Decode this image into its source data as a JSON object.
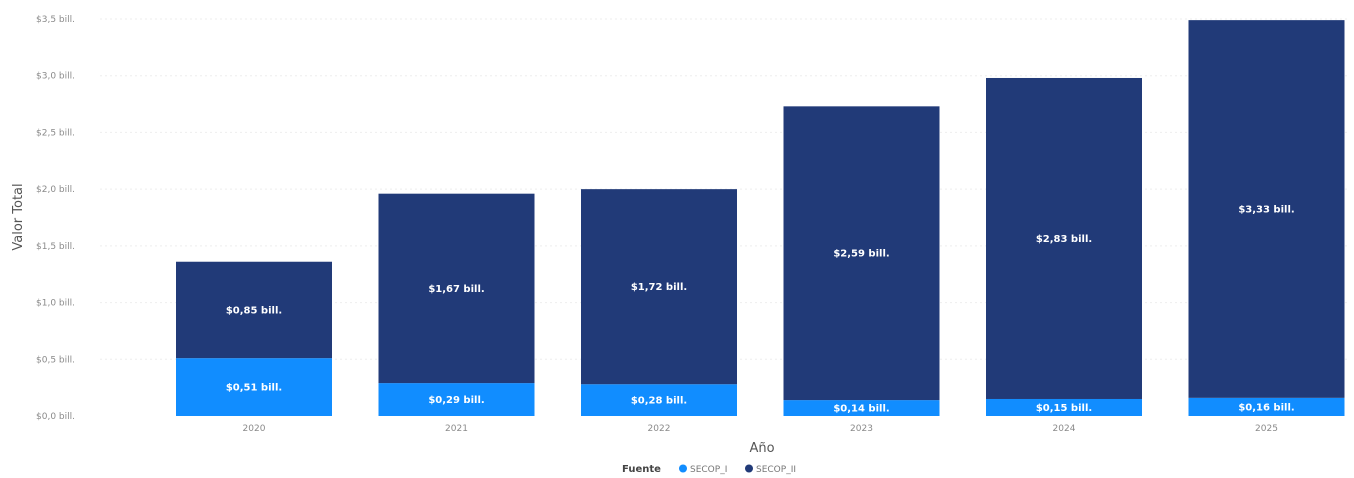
{
  "chart_data": {
    "type": "bar",
    "stacked": true,
    "categories": [
      "2020",
      "2021",
      "2022",
      "2023",
      "2024",
      "2025"
    ],
    "series": [
      {
        "name": "SECOP_I",
        "color": "#118dff",
        "values": [
          0.51,
          0.29,
          0.28,
          0.14,
          0.15,
          0.16
        ],
        "labels": [
          "$0,51 bill.",
          "$0,29 bill.",
          "$0,28 bill.",
          "$0,14 bill.",
          "$0,15 bill.",
          "$0,16 bill."
        ]
      },
      {
        "name": "SECOP_II",
        "color": "#213a78",
        "values": [
          0.85,
          1.67,
          1.72,
          2.59,
          2.83,
          3.33
        ],
        "labels": [
          "$0,85 bill.",
          "$1,67 bill.",
          "$1,72 bill.",
          "$2,59 bill.",
          "$2,83 bill.",
          "$3,33 bill."
        ]
      }
    ],
    "xlabel": "Año",
    "ylabel": "Valor Total",
    "ylim": [
      0,
      3.5
    ],
    "yticks": [
      {
        "value": 0,
        "label": "$0,0 bill."
      },
      {
        "value": 0.5,
        "label": "$0,5 bill."
      },
      {
        "value": 1.0,
        "label": "$1,0 bill."
      },
      {
        "value": 1.5,
        "label": "$1,5 bill."
      },
      {
        "value": 2.0,
        "label": "$2,0 bill."
      },
      {
        "value": 2.5,
        "label": "$2,5 bill."
      },
      {
        "value": 3.0,
        "label": "$3,0 bill."
      },
      {
        "value": 3.5,
        "label": "$3,5 bill."
      }
    ],
    "grid": true,
    "legend": {
      "title": "Fuente",
      "placement": "bottom-center"
    }
  }
}
